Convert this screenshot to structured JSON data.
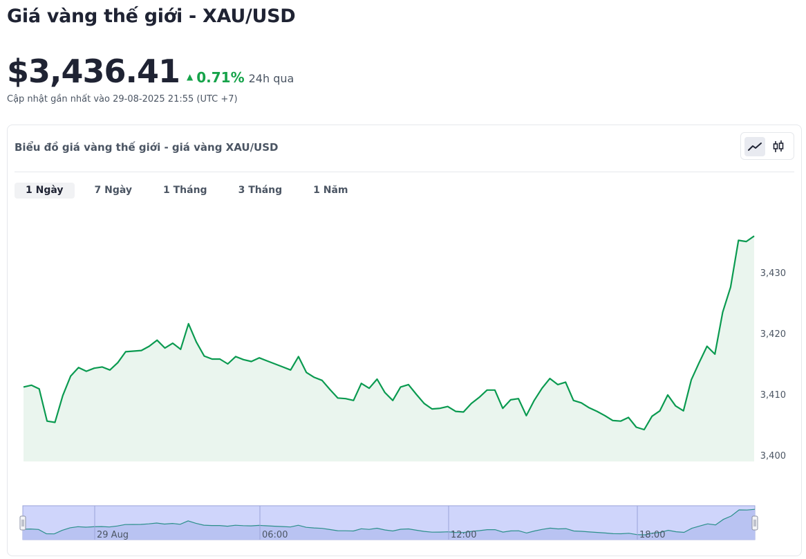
{
  "header": {
    "title": "Giá vàng thế giới - XAU/USD",
    "price": "$3,436.41",
    "change_pct": "0.71%",
    "change_period": "24h qua",
    "updated": "Cập nhật gần nhất vào 29-08-2025 21:55 (UTC +7)"
  },
  "chart_card": {
    "title": "Biểu đồ giá vàng thế giới - giá vàng XAU/USD",
    "chart_types": [
      {
        "icon": "line-chart-icon",
        "active": true
      },
      {
        "icon": "candlestick-icon",
        "active": false
      }
    ],
    "ranges": [
      {
        "label": "1 Ngày",
        "active": true
      },
      {
        "label": "7 Ngày",
        "active": false
      },
      {
        "label": "1 Tháng",
        "active": false
      },
      {
        "label": "3 Tháng",
        "active": false
      },
      {
        "label": "1 Năm",
        "active": false
      }
    ]
  },
  "colors": {
    "line": "#0a9a50",
    "area": "#eaf5ee",
    "up": "#16a34a",
    "navigator_fill": "#cfd5fb"
  },
  "chart_data": {
    "type": "area",
    "title": "",
    "xlabel": "",
    "ylabel": "",
    "ylim": [
      3400,
      3435
    ],
    "y_ticks": [
      "3,400",
      "3,410",
      "3,420",
      "3,430"
    ],
    "y_tick_values": [
      3400,
      3410,
      3420,
      3430
    ],
    "navigator_x_labels": [
      "29 Aug",
      "06:00",
      "12:00",
      "18:00"
    ],
    "series": [
      {
        "values": [
          3411.2,
          3411.5,
          3410.9,
          3405.6,
          3405.4,
          3409.8,
          3413.0,
          3414.4,
          3413.8,
          3414.3,
          3414.5,
          3414.0,
          3415.2,
          3417.0,
          3417.1,
          3417.2,
          3417.9,
          3418.9,
          3417.6,
          3418.4,
          3417.4,
          3421.6,
          3418.6,
          3416.3,
          3415.8,
          3415.8,
          3415.0,
          3416.2,
          3415.7,
          3415.4,
          3416.0,
          3415.5,
          3415.0,
          3414.5,
          3414.0,
          3416.2,
          3413.6,
          3412.8,
          3412.3,
          3410.8,
          3409.4,
          3409.3,
          3409.0,
          3411.8,
          3411.0,
          3412.5,
          3410.3,
          3409.0,
          3411.2,
          3411.6,
          3410.0,
          3408.5,
          3407.6,
          3407.7,
          3408.0,
          3407.2,
          3407.1,
          3408.5,
          3409.5,
          3410.7,
          3410.7,
          3407.7,
          3409.1,
          3409.3,
          3406.5,
          3409.0,
          3411.0,
          3412.6,
          3411.6,
          3412.0,
          3409.0,
          3408.6,
          3407.8,
          3407.2,
          3406.5,
          3405.7,
          3405.6,
          3406.2,
          3404.6,
          3404.2,
          3406.4,
          3407.3,
          3409.9,
          3408.1,
          3407.3,
          3412.4,
          3415.2,
          3417.9,
          3416.6,
          3423.5,
          3427.6,
          3435.3,
          3435.1,
          3436.0
        ]
      }
    ]
  }
}
